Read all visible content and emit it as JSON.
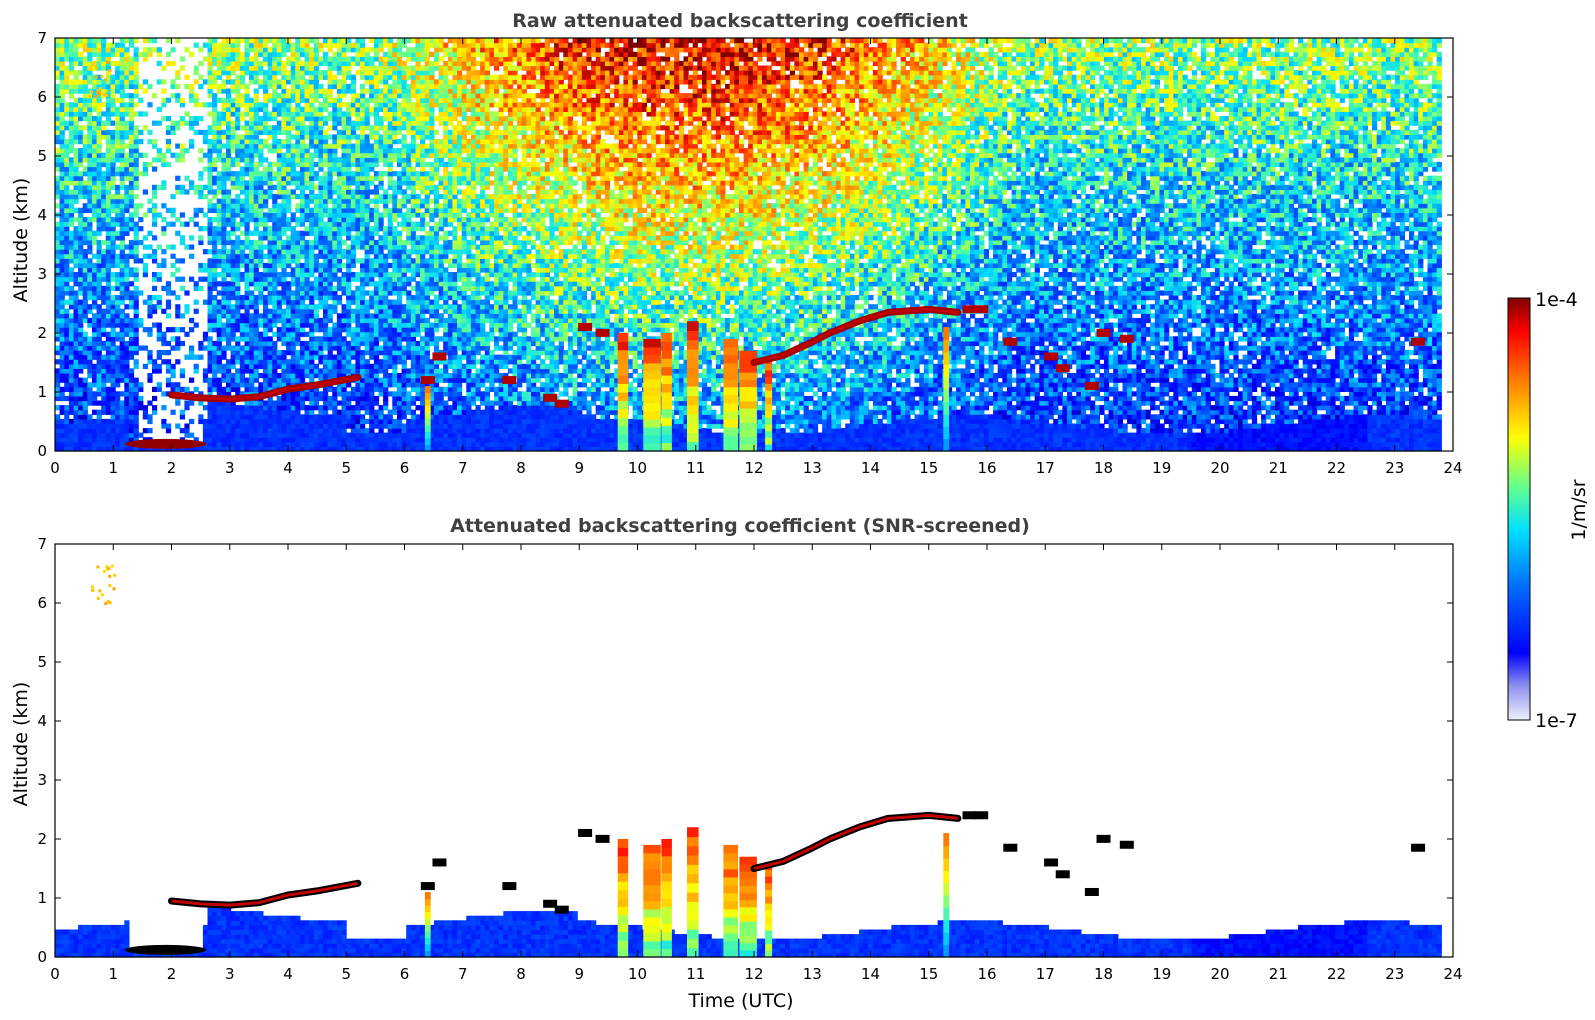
{
  "chart_data": [
    {
      "type": "heatmap",
      "title": "Raw attenuated backscattering coefficient",
      "xlabel": "",
      "ylabel": "Altitude (km)",
      "xlim": [
        0,
        24
      ],
      "ylim": [
        0,
        7
      ],
      "x_ticks": [
        "0",
        "1",
        "2",
        "3",
        "4",
        "5",
        "6",
        "7",
        "8",
        "9",
        "10",
        "11",
        "12",
        "13",
        "14",
        "15",
        "16",
        "17",
        "18",
        "19",
        "20",
        "21",
        "22",
        "23",
        "24"
      ],
      "y_ticks": [
        "0",
        "1",
        "2",
        "3",
        "4",
        "5",
        "6",
        "7"
      ],
      "data_end_time": 23.8,
      "features": [
        {
          "kind": "background_noise",
          "description_values": {
            "surface_layer_top_km": 0.5
          }
        },
        {
          "kind": "cloud_layer",
          "points": [
            [
              2.0,
              0.95
            ],
            [
              3.0,
              0.9
            ],
            [
              4.0,
              1.05
            ],
            [
              5.2,
              1.25
            ]
          ]
        },
        {
          "kind": "cloud_layer",
          "points": [
            [
              12.0,
              1.55
            ],
            [
              13.0,
              1.85
            ],
            [
              14.0,
              2.25
            ],
            [
              15.0,
              2.35
            ],
            [
              15.5,
              2.3
            ]
          ]
        },
        {
          "kind": "precip_columns",
          "times": [
            9.7,
            10.2,
            10.6,
            11.0,
            11.5,
            11.9,
            12.2
          ]
        }
      ]
    },
    {
      "type": "heatmap",
      "title": "Attenuated backscattering coefficient (SNR-screened)",
      "xlabel": "Time (UTC)",
      "ylabel": "Altitude (km)",
      "xlim": [
        0,
        24
      ],
      "ylim": [
        0,
        7
      ],
      "x_ticks": [
        "0",
        "1",
        "2",
        "3",
        "4",
        "5",
        "6",
        "7",
        "8",
        "9",
        "10",
        "11",
        "12",
        "13",
        "14",
        "15",
        "16",
        "17",
        "18",
        "19",
        "20",
        "21",
        "22",
        "23",
        "24"
      ],
      "y_ticks": [
        "0",
        "1",
        "2",
        "3",
        "4",
        "5",
        "6",
        "7"
      ],
      "data_end_time": 23.8
    }
  ],
  "colorbar": {
    "label": "1/m/sr",
    "max_label": "1e-4",
    "min_label": "1e-7",
    "scale": "log",
    "range": [
      1e-07,
      0.0001
    ],
    "colormap": "jet",
    "colors": [
      "#e6e6f5",
      "#b3b3ee",
      "#0000ff",
      "#0080ff",
      "#00ffff",
      "#80ff80",
      "#ffff00",
      "#ff8000",
      "#ff0000",
      "#800000"
    ]
  }
}
